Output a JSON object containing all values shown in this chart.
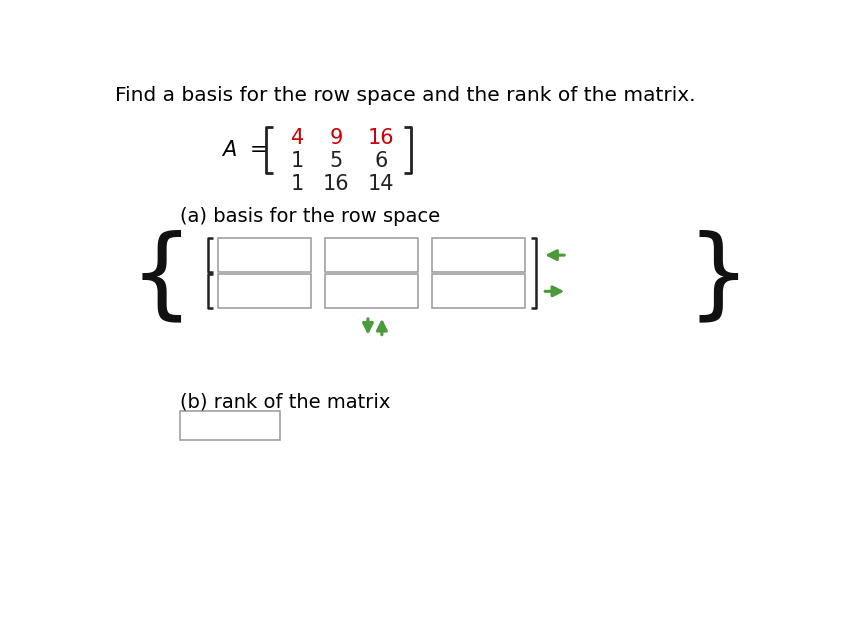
{
  "title": "Find a basis for the row space and the rank of the matrix.",
  "title_fontsize": 14.5,
  "background_color": "#ffffff",
  "matrix_label": "A =",
  "matrix_rows": [
    [
      "4",
      "9",
      "16"
    ],
    [
      "1",
      "5",
      "6"
    ],
    [
      "1",
      "16",
      "14"
    ]
  ],
  "matrix_row_colors": [
    [
      "#cc0000",
      "#cc0000",
      "#cc0000"
    ],
    [
      "#222222",
      "#222222",
      "#222222"
    ],
    [
      "#222222",
      "#222222",
      "#222222"
    ]
  ],
  "part_a_label": "(a) basis for the row space",
  "part_b_label": "(b) rank of the matrix",
  "input_box_color": "#ffffff",
  "input_box_edge_color": "#999999",
  "green_color": "#4a9a3a",
  "bracket_color": "#222222",
  "curly_color": "#111111"
}
